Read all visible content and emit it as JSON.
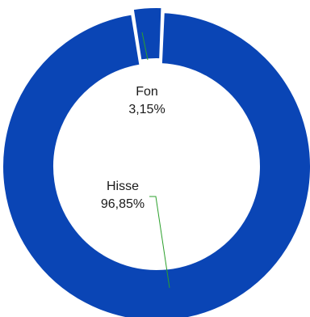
{
  "chart_data": {
    "type": "pie",
    "subtype": "donut",
    "title": "",
    "slices": [
      {
        "label": "Fon",
        "value": 3.15,
        "display": "3,15%",
        "color": "#0A45B5",
        "exploded": true
      },
      {
        "label": "Hisse",
        "value": 96.85,
        "display": "96,85%",
        "color": "#0A45B5",
        "exploded": false
      }
    ],
    "legend": "none"
  }
}
